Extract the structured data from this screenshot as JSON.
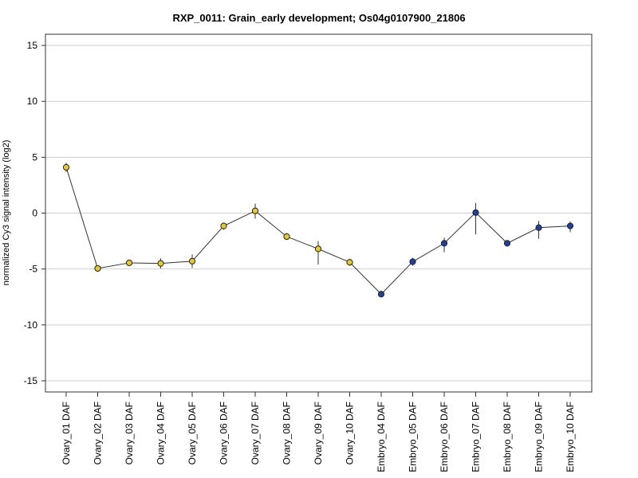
{
  "chart_data": {
    "type": "line",
    "title": "RXP_0011: Grain_early development; Os04g0107900_21806",
    "ylabel": "normalized Cy3 signal intensity (log2)",
    "xlabel": "",
    "ylim": [
      -16,
      16
    ],
    "yticks": [
      15,
      10,
      5,
      0,
      -5,
      -10,
      -15
    ],
    "ytick_labels": [
      "15",
      "10",
      "5",
      "0",
      "-5",
      "-10",
      "-15"
    ],
    "grid": true,
    "categories": [
      "Ovary_01 DAF",
      "Ovary_02 DAF",
      "Ovary_03 DAF",
      "Ovary_04 DAF",
      "Ovary_05 DAF",
      "Ovary_06 DAF",
      "Ovary_07 DAF",
      "Ovary_08 DAF",
      "Ovary_09 DAF",
      "Ovary_10 DAF",
      "Embryo_04 DAF",
      "Embryo_05 DAF",
      "Embryo_06 DAF",
      "Embryo_07 DAF",
      "Embryo_08 DAF",
      "Embryo_09 DAF",
      "Embryo_10 DAF"
    ],
    "values": [
      4.1,
      -4.95,
      -4.45,
      -4.5,
      -4.3,
      -1.15,
      0.2,
      -2.1,
      -3.2,
      -4.4,
      -7.25,
      -4.35,
      -2.7,
      0.05,
      -2.7,
      -1.3,
      -1.15
    ],
    "error_low": [
      3.7,
      -5.2,
      -4.6,
      -4.95,
      -4.9,
      -1.5,
      -0.5,
      -2.4,
      -4.6,
      -4.7,
      -7.4,
      -4.7,
      -3.5,
      -1.9,
      -2.85,
      -2.3,
      -1.7
    ],
    "error_high": [
      4.5,
      -4.8,
      -4.3,
      -4.05,
      -3.7,
      -0.85,
      0.85,
      -1.8,
      -2.5,
      -4.1,
      -7.1,
      -4.0,
      -2.2,
      0.9,
      -2.55,
      -0.7,
      -0.75
    ],
    "point_colors": [
      "#e8c92a",
      "#e8c92a",
      "#e8c92a",
      "#e8c92a",
      "#e8c92a",
      "#e8c92a",
      "#e8c92a",
      "#e8c92a",
      "#e8c92a",
      "#e8c92a",
      "#1f3fa6",
      "#1f3fa6",
      "#1f3fa6",
      "#1f3fa6",
      "#1f3fa6",
      "#1f3fa6",
      "#1f3fa6"
    ]
  }
}
